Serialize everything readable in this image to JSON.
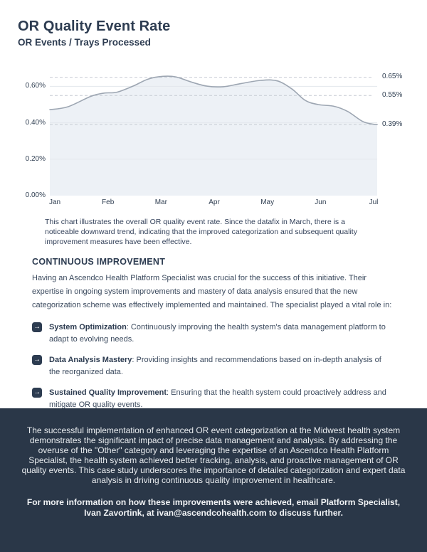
{
  "header": {
    "title": "OR Quality Event Rate",
    "subtitle": "OR Events / Trays Processed"
  },
  "chart_data": {
    "type": "area",
    "title": "OR Quality Event Rate",
    "xlabel": "",
    "ylabel": "OR Events / Trays Processed (%)",
    "categories": [
      "Jan",
      "Feb",
      "Mar",
      "Apr",
      "May",
      "Jun",
      "Jul"
    ],
    "values": [
      0.47,
      0.57,
      0.65,
      0.6,
      0.63,
      0.49,
      0.39
    ],
    "ylim": [
      0,
      0.69
    ],
    "grid": true,
    "legend": false,
    "y_ticks": [
      {
        "value": 0.0,
        "label": "0.00%"
      },
      {
        "value": 0.2,
        "label": "0.20%"
      },
      {
        "value": 0.4,
        "label": "0.40%"
      },
      {
        "value": 0.6,
        "label": "0.60%"
      }
    ],
    "annotations": [
      {
        "value": 0.65,
        "label": "0.65%"
      },
      {
        "value": 0.55,
        "label": "0.55%"
      },
      {
        "value": 0.39,
        "label": "0.39%"
      }
    ],
    "curve": [
      [
        0.0,
        0.472
      ],
      [
        0.055,
        0.488
      ],
      [
        0.125,
        0.545
      ],
      [
        0.165,
        0.563
      ],
      [
        0.205,
        0.568
      ],
      [
        0.255,
        0.602
      ],
      [
        0.3,
        0.64
      ],
      [
        0.345,
        0.655
      ],
      [
        0.385,
        0.652
      ],
      [
        0.43,
        0.625
      ],
      [
        0.48,
        0.601
      ],
      [
        0.53,
        0.598
      ],
      [
        0.58,
        0.614
      ],
      [
        0.645,
        0.633
      ],
      [
        0.695,
        0.63
      ],
      [
        0.74,
        0.585
      ],
      [
        0.78,
        0.523
      ],
      [
        0.82,
        0.5
      ],
      [
        0.87,
        0.49
      ],
      [
        0.91,
        0.462
      ],
      [
        0.955,
        0.408
      ],
      [
        0.985,
        0.393
      ],
      [
        1.0,
        0.39
      ]
    ],
    "colors": {
      "line": "#9da6b2",
      "fill": "#edf1f6",
      "grid": "#e3e7ec",
      "dashed": "#c7ccd4",
      "label": "#2f3e51"
    }
  },
  "caption": "This chart illustrates the overall OR quality event rate. Since the datafix in March, there is a noticeable downward trend, indicating that the improved categorization and subsequent quality improvement measures have been effective.",
  "improvement": {
    "heading": "CONTINUOUS IMPROVEMENT",
    "intro": "Having an Ascendco Health Platform Specialist was crucial for the success of this initiative. Their expertise in ongoing system improvements and mastery of data analysis ensured that the new categorization scheme was effectively implemented and maintained. The specialist played a vital role in:",
    "arrow_icon": "→",
    "bullets": [
      {
        "label": "System Optimization",
        "text": ": Continuously improving the health system's data management platform to adapt to evolving needs."
      },
      {
        "label": "Data Analysis Mastery",
        "text": ": Providing insights and recommendations based on in-depth analysis of the reorganized data."
      },
      {
        "label": "Sustained Quality Improvement",
        "text": ": Ensuring that the health system could proactively address and mitigate OR quality events."
      }
    ]
  },
  "footer": {
    "background": "#2a3748",
    "summary": "The successful implementation of enhanced OR event categorization at the Midwest health system demonstrates the significant impact of precise data management and analysis. By addressing the overuse of the \"Other\" category and leveraging the expertise of an Ascendco Health Platform Specialist, the health system achieved better tracking, analysis, and proactive management of OR quality events. This case study underscores the importance of detailed categorization and expert data analysis in driving continuous quality improvement in healthcare.",
    "contact": "For more information on how these improvements were achieved, email Platform Specialist, Ivan Zavortink, at ivan@ascendcohealth.com to discuss further."
  }
}
